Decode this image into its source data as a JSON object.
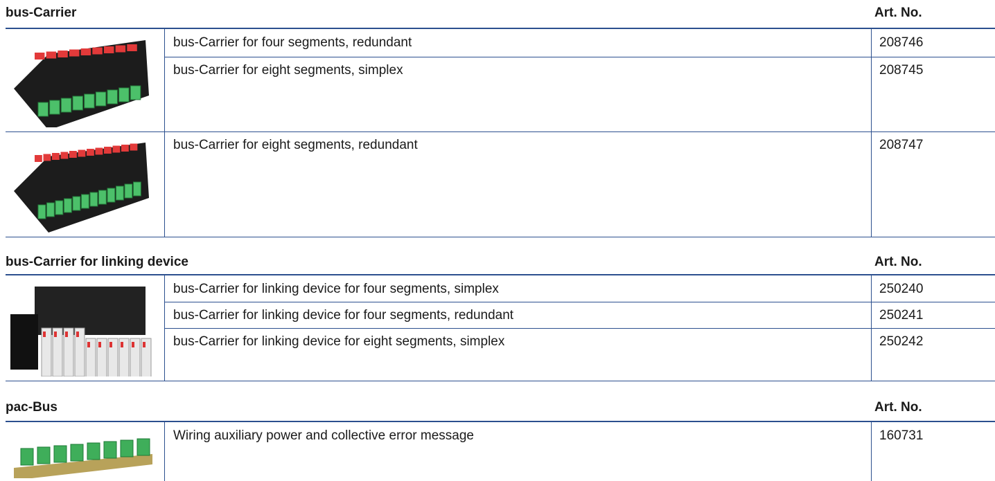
{
  "sections": [
    {
      "title": "bus-Carrier",
      "art_no_header": "Art. No.",
      "groups": [
        {
          "rows": [
            {
              "description": "bus-Carrier for four segments, redundant",
              "art_no": "208746"
            },
            {
              "description": "bus-Carrier for eight segments, simplex",
              "art_no": "208745"
            }
          ]
        },
        {
          "rows": [
            {
              "description": "bus-Carrier for eight segments, redundant",
              "art_no": "208747"
            }
          ]
        }
      ]
    },
    {
      "title": "bus-Carrier for linking device",
      "art_no_header": "Art. No.",
      "groups": [
        {
          "rows": [
            {
              "description": "bus-Carrier for linking device for four segments, simplex",
              "art_no": "250240"
            },
            {
              "description": "bus-Carrier for linking device for four segments, redundant",
              "art_no": "250241"
            },
            {
              "description": "bus-Carrier for linking device for eight segments, simplex",
              "art_no": "250242"
            }
          ]
        }
      ]
    },
    {
      "title": "pac-Bus",
      "art_no_header": "Art. No.",
      "groups": [
        {
          "rows": [
            {
              "description": "Wiring auxiliary power and collective error message",
              "art_no": "160731"
            }
          ]
        }
      ]
    }
  ]
}
